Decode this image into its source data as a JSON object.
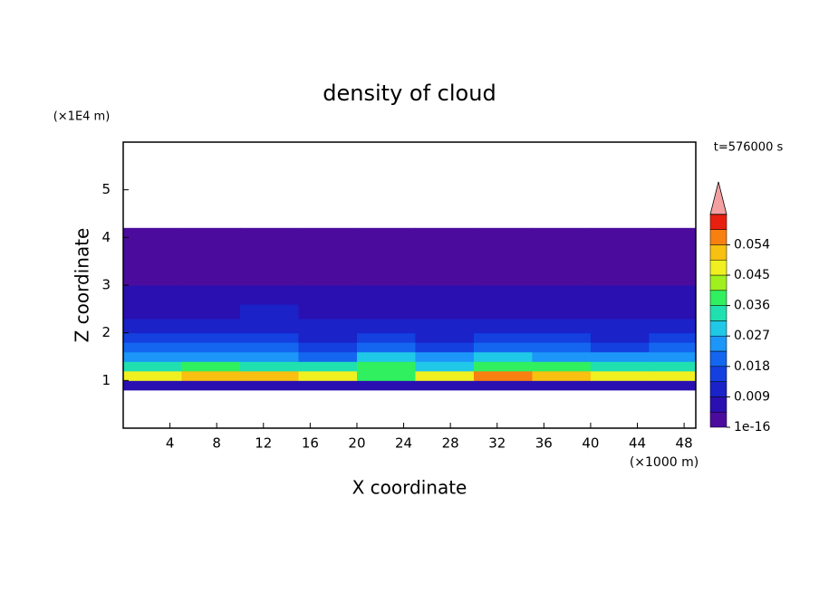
{
  "chart_data": {
    "type": "contour",
    "title": "density of cloud",
    "x_label": "X coordinate",
    "y_label": "Z coordinate",
    "x_unit": "(×1000 m)",
    "y_unit": "(×1E4 m)",
    "time_label": "t=576000 s",
    "xlim": [
      0,
      49
    ],
    "ylim": [
      0,
      6
    ],
    "xticks": [
      4,
      8,
      12,
      16,
      20,
      24,
      28,
      32,
      36,
      40,
      44,
      48
    ],
    "yticks": [
      1,
      2,
      3,
      4,
      5
    ],
    "xbins": [
      0,
      5,
      10,
      15,
      20,
      25,
      30,
      35,
      40,
      45,
      49
    ],
    "ybins": [
      0.8,
      1.0,
      1.2,
      1.4,
      1.6,
      1.8,
      2.0,
      2.3,
      2.6,
      3.0,
      3.4,
      3.8,
      4.2
    ],
    "values": [
      [
        0.006,
        0.006,
        0.006,
        0.006,
        0.006,
        0.006,
        0.006,
        0.006,
        0.006,
        0.006
      ],
      [
        0.045,
        0.05,
        0.052,
        0.045,
        0.04,
        0.045,
        0.055,
        0.052,
        0.048,
        0.045
      ],
      [
        0.034,
        0.036,
        0.035,
        0.032,
        0.038,
        0.03,
        0.036,
        0.038,
        0.034,
        0.035
      ],
      [
        0.025,
        0.026,
        0.024,
        0.022,
        0.028,
        0.024,
        0.027,
        0.026,
        0.025,
        0.024
      ],
      [
        0.018,
        0.019,
        0.018,
        0.017,
        0.02,
        0.017,
        0.019,
        0.018,
        0.017,
        0.018
      ],
      [
        0.014,
        0.015,
        0.014,
        0.013,
        0.015,
        0.013,
        0.014,
        0.014,
        0.013,
        0.014
      ],
      [
        0.011,
        0.011,
        0.012,
        0.01,
        0.011,
        0.01,
        0.011,
        0.011,
        0.01,
        0.011
      ],
      [
        0.008,
        0.008,
        0.009,
        0.007,
        0.008,
        0.007,
        0.008,
        0.008,
        0.007,
        0.008
      ],
      [
        0.005,
        0.005,
        0.005,
        0.006,
        0.005,
        0.006,
        0.006,
        0.005,
        0.005,
        0.005
      ],
      [
        0.003,
        0.003,
        0.003,
        0.003,
        0.004,
        0.004,
        0.003,
        0.003,
        0.003,
        0.003
      ],
      [
        0.001,
        0.001,
        0.001,
        0.001,
        0.001,
        0.001,
        0.001,
        0.001,
        0.001,
        0.001
      ],
      [
        0.0005,
        0.0005,
        0.0005,
        0.0005,
        0.0005,
        0.0005,
        0.0005,
        0.0005,
        0.0005,
        0.0005
      ]
    ],
    "levels": [
      1e-16,
      0.0045,
      0.009,
      0.0135,
      0.018,
      0.0225,
      0.027,
      0.0315,
      0.036,
      0.0405,
      0.045,
      0.0495,
      0.054,
      0.0585
    ],
    "colors": [
      "#4b0c9e",
      "#2a10b0",
      "#1a22c8",
      "#1440e0",
      "#1466f0",
      "#1c96f8",
      "#20c8e8",
      "#20e0b0",
      "#30f060",
      "#a0f020",
      "#f0f020",
      "#f8c010",
      "#f88010",
      "#e82010"
    ],
    "extend_color": "#f4a0a0",
    "cbar_ticks": [
      1e-16,
      0.009,
      0.018,
      0.027,
      0.036,
      0.045,
      0.054
    ]
  }
}
